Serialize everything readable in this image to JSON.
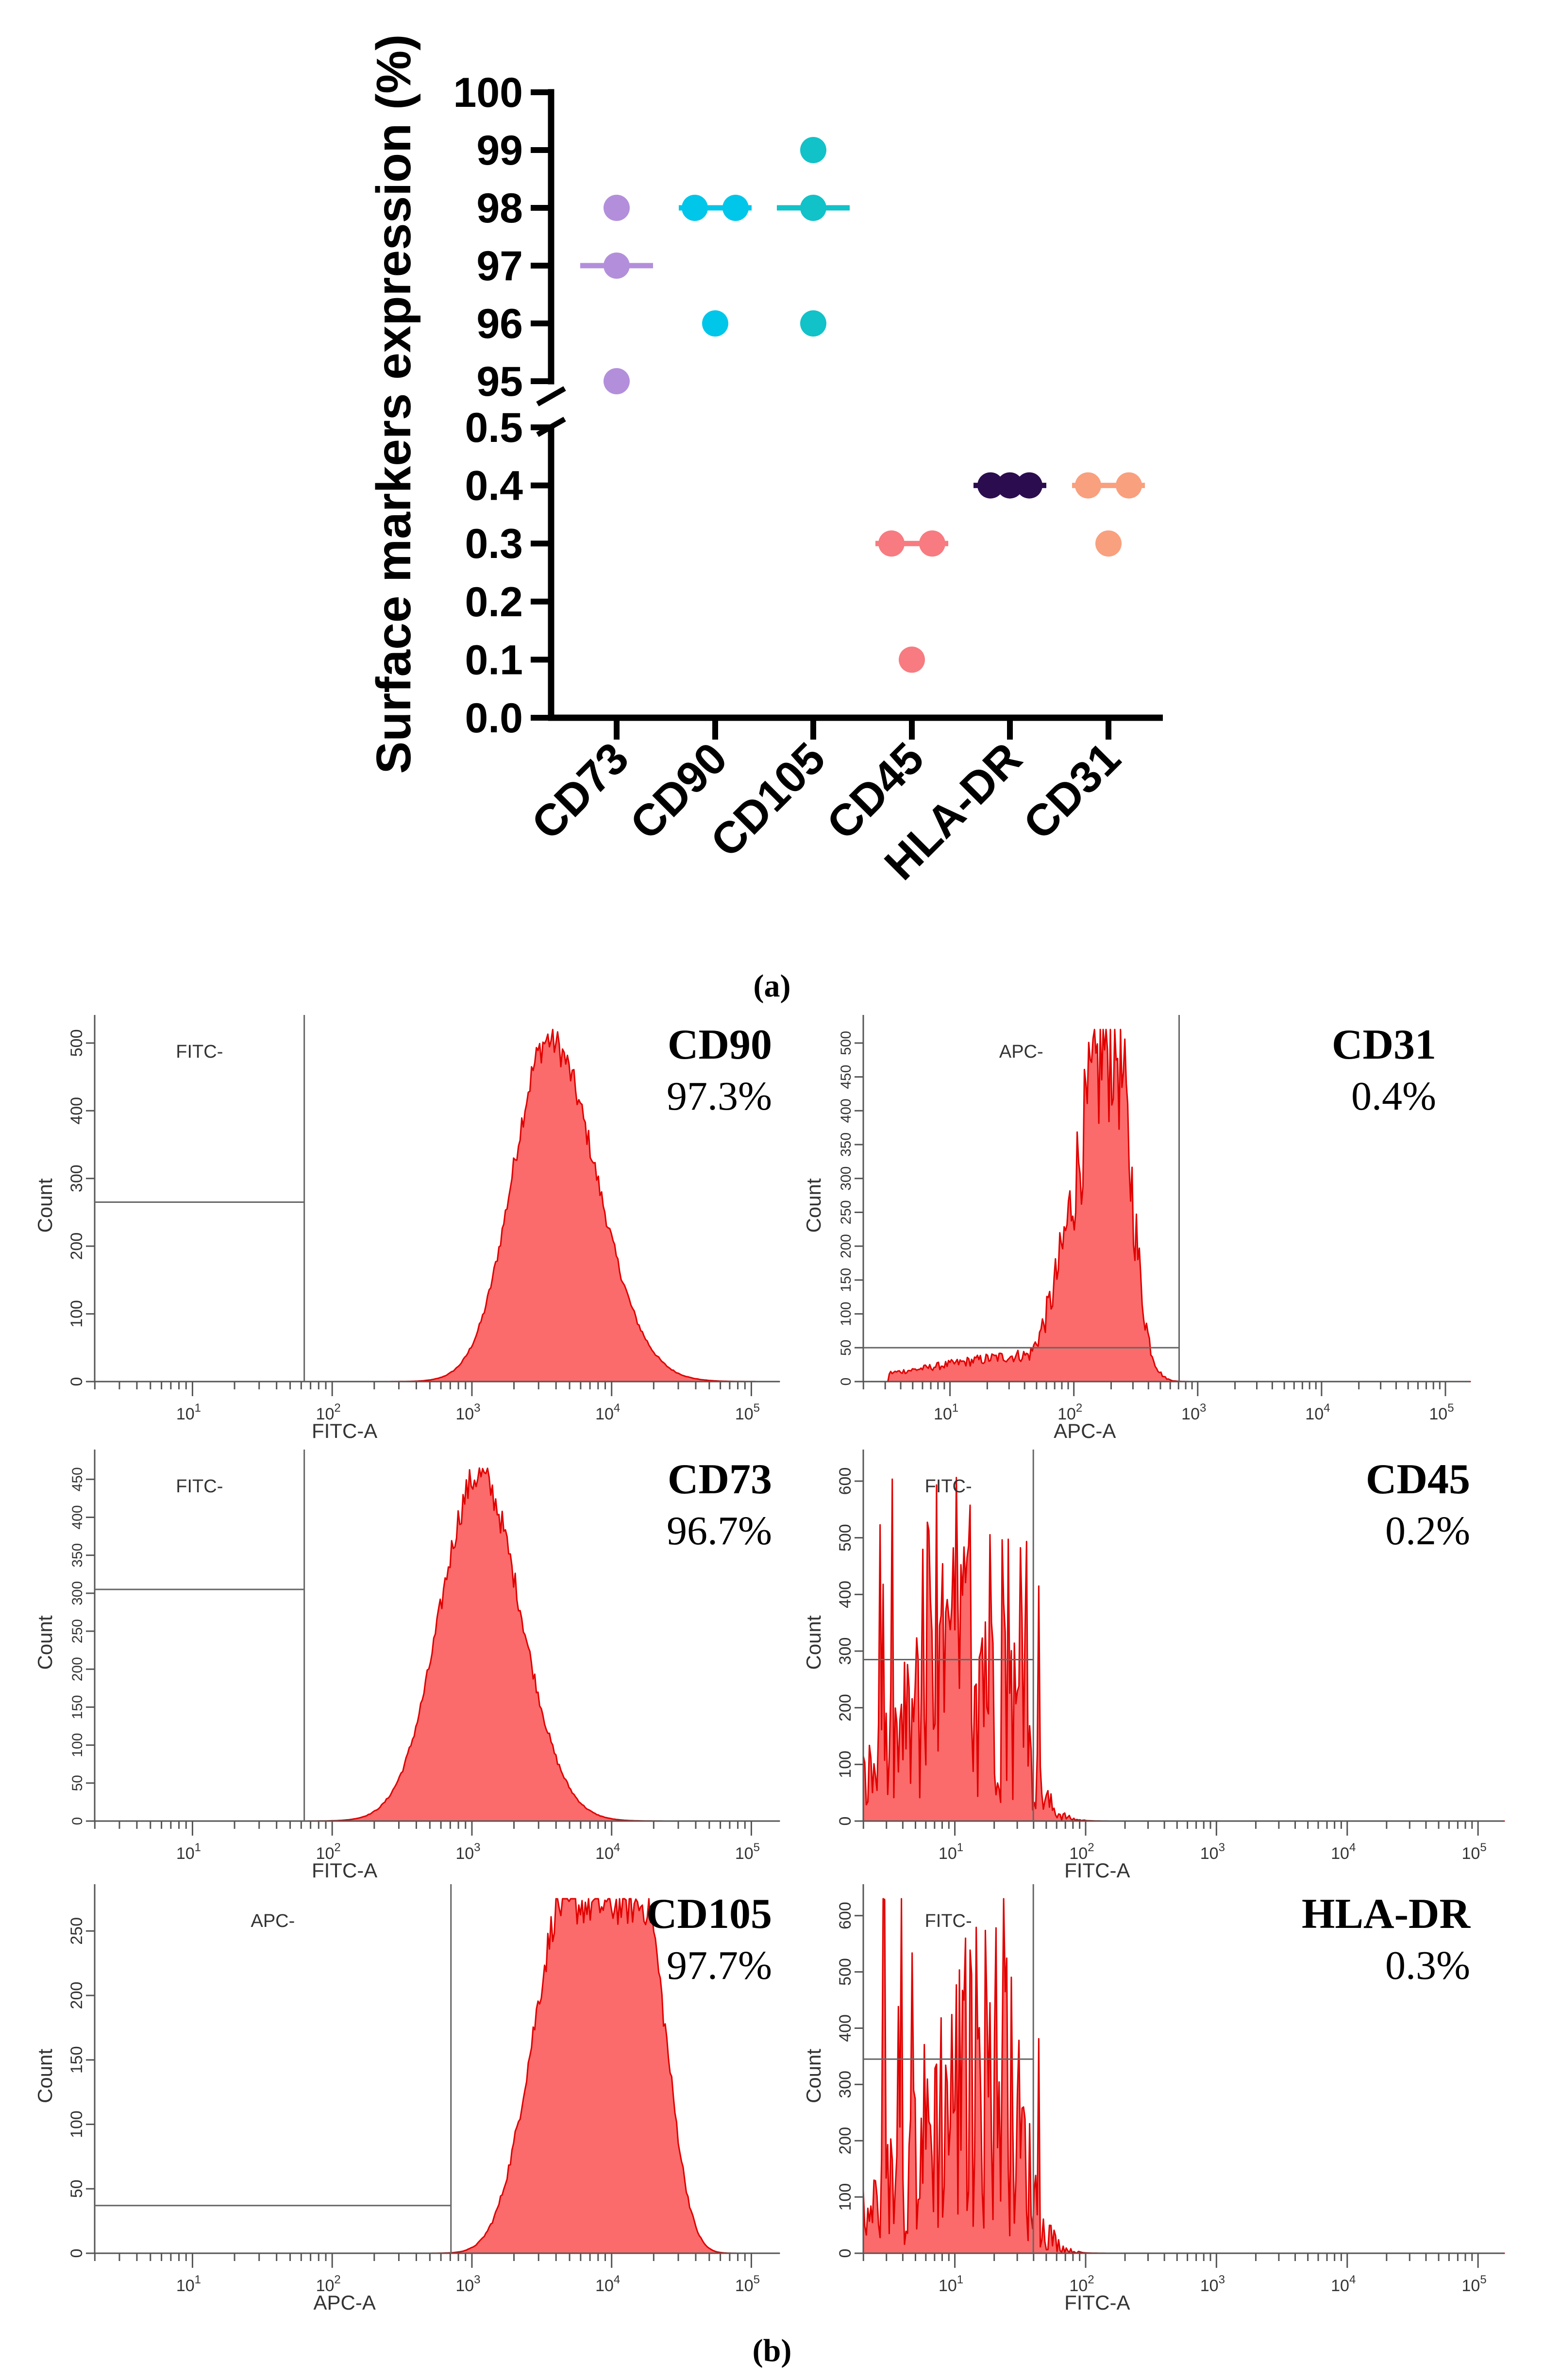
{
  "figure": {
    "panel_a_label": "(a)",
    "panel_b_label": "(b)"
  },
  "chart_data": [
    {
      "type": "scatter",
      "title": "",
      "xlabel": "",
      "ylabel": "Surface markers expression (%)",
      "categories": [
        "CD73",
        "CD90",
        "CD105",
        "CD45",
        "HLA-DR",
        "CD31"
      ],
      "y_axis_segments": [
        {
          "ylim": [
            95,
            100
          ],
          "ticks": [
            "95",
            "96",
            "97",
            "98",
            "99",
            "100"
          ]
        },
        {
          "ylim": [
            0.0,
            0.5
          ],
          "ticks": [
            "0.0",
            "0.1",
            "0.2",
            "0.3",
            "0.4",
            "0.5"
          ]
        }
      ],
      "axis_break": true,
      "series": [
        {
          "name": "CD73",
          "color": "#b38fdb",
          "values": [
            98,
            97,
            95
          ],
          "median": 97
        },
        {
          "name": "CD90",
          "color": "#00c6ea",
          "values": [
            98,
            98,
            96
          ],
          "median": 98
        },
        {
          "name": "CD105",
          "color": "#11c2c8",
          "values": [
            99,
            98,
            96
          ],
          "median": 98
        },
        {
          "name": "CD45",
          "color": "#f77b80",
          "values": [
            0.3,
            0.3,
            0.1
          ],
          "median": 0.3
        },
        {
          "name": "HLA-DR",
          "color": "#2b0d4f",
          "values": [
            0.4,
            0.4,
            0.4
          ],
          "median": 0.4
        },
        {
          "name": "CD31",
          "color": "#f9a07e",
          "values": [
            0.4,
            0.4,
            0.3
          ],
          "median": 0.4
        }
      ]
    },
    {
      "type": "area",
      "title": "CD90",
      "percent": "97.3%",
      "gate_label": "FITC-",
      "xlabel": "FITC-A",
      "ylabel": "Count",
      "y_ticks": [
        "0",
        "100",
        "200",
        "300",
        "400",
        "500"
      ],
      "ylim": [
        0,
        520
      ],
      "x_ticks": [
        "10^1",
        "10^2",
        "10^3",
        "10^4",
        "10^5"
      ],
      "xlim_log10": [
        0.3,
        5.2
      ],
      "gate_log10": 1.8,
      "gate_count": 265,
      "peak_log10": 3.55,
      "peak_count": 505,
      "sigma_left": 0.26,
      "sigma_right": 0.34,
      "noise": 0.05,
      "fill": "#fb6b6b",
      "stroke": "#e10000"
    },
    {
      "type": "area",
      "title": "CD31",
      "percent": "0.4%",
      "gate_label": "APC-",
      "xlabel": "APC-A",
      "ylabel": "Count",
      "y_ticks": [
        "0",
        "50",
        "100",
        "150",
        "200",
        "250",
        "300",
        "350",
        "400",
        "450",
        "500"
      ],
      "ylim": [
        0,
        520
      ],
      "x_ticks": [
        "10^1",
        "10^2",
        "10^3",
        "10^4",
        "10^5"
      ],
      "xlim_log10": [
        0.3,
        5.2
      ],
      "gate_log10": 2.85,
      "gate_count": 50,
      "peak_log10": 2.32,
      "peak_count": 505,
      "sigma_left": 0.3,
      "sigma_right": 0.14,
      "noise": 0.25,
      "tail": 40,
      "fill": "#fb6b6b",
      "stroke": "#e10000"
    },
    {
      "type": "area",
      "title": "CD73",
      "percent": "96.7%",
      "gate_label": "FITC-",
      "xlabel": "FITC-A",
      "ylabel": "Count",
      "y_ticks": [
        "0",
        "50",
        "100",
        "150",
        "200",
        "250",
        "300",
        "350",
        "400",
        "450"
      ],
      "ylim": [
        0,
        470
      ],
      "x_ticks": [
        "10^1",
        "10^2",
        "10^3",
        "10^4",
        "10^5"
      ],
      "xlim_log10": [
        0.3,
        5.2
      ],
      "gate_log10": 1.8,
      "gate_count": 305,
      "peak_log10": 3.05,
      "peak_count": 455,
      "sigma_left": 0.28,
      "sigma_right": 0.3,
      "noise": 0.05,
      "fill": "#fb6b6b",
      "stroke": "#e10000"
    },
    {
      "type": "area",
      "title": "CD45",
      "percent": "0.2%",
      "gate_label": "FITC-",
      "xlabel": "FITC-A",
      "ylabel": "Count",
      "y_ticks": [
        "0",
        "100",
        "200",
        "300",
        "400",
        "500",
        "600"
      ],
      "ylim": [
        0,
        630
      ],
      "x_ticks": [
        "10^1",
        "10^2",
        "10^3",
        "10^4",
        "10^5"
      ],
      "xlim_log10": [
        0.3,
        5.2
      ],
      "gate_log10": 1.6,
      "gate_count": 285,
      "peak_log10": 1.25,
      "peak_count": 300,
      "sigma_left": 0.55,
      "sigma_right": 0.22,
      "noise": 0.9,
      "spikes": true,
      "fill": "#fb6b6b",
      "stroke": "#e10000"
    },
    {
      "type": "area",
      "title": "CD105",
      "percent": "97.7%",
      "gate_label": "APC-",
      "xlabel": "APC-A",
      "ylabel": "Count",
      "y_ticks": [
        "0",
        "50",
        "100",
        "150",
        "200",
        "250"
      ],
      "ylim": [
        0,
        275
      ],
      "x_ticks": [
        "10^1",
        "10^2",
        "10^3",
        "10^4",
        "10^5"
      ],
      "xlim_log10": [
        0.3,
        5.2
      ],
      "gate_log10": 2.85,
      "gate_count": 37,
      "peak_log10": 4.0,
      "peak_count": 270,
      "sigma_left": 0.55,
      "sigma_right": 0.38,
      "flat": true,
      "noise": 0.06,
      "fill": "#fb6b6b",
      "stroke": "#e10000"
    },
    {
      "type": "area",
      "title": "HLA-DR",
      "percent": "0.3%",
      "gate_label": "FITC-",
      "xlabel": "FITC-A",
      "ylabel": "Count",
      "y_ticks": [
        "0",
        "100",
        "200",
        "300",
        "400",
        "500",
        "600"
      ],
      "ylim": [
        0,
        630
      ],
      "x_ticks": [
        "10^1",
        "10^2",
        "10^3",
        "10^4",
        "10^5"
      ],
      "xlim_log10": [
        0.3,
        5.2
      ],
      "gate_log10": 1.6,
      "gate_count": 345,
      "peak_log10": 1.3,
      "peak_count": 330,
      "sigma_left": 0.55,
      "sigma_right": 0.2,
      "noise": 0.9,
      "spikes": true,
      "fill": "#fb6b6b",
      "stroke": "#e10000"
    }
  ]
}
